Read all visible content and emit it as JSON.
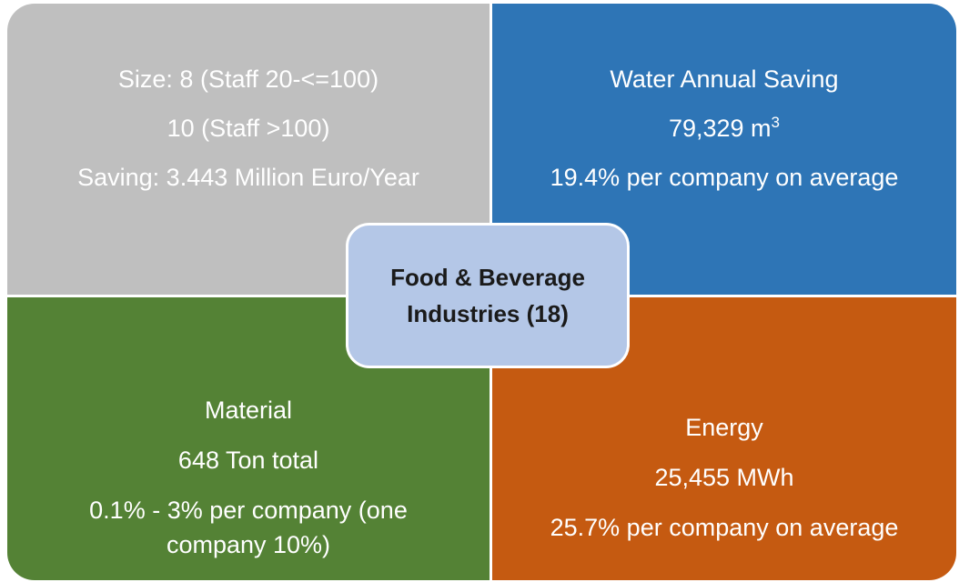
{
  "top_left": {
    "lines": [
      "Size: 8 (Staff 20-<=100)",
      "10 (Staff >100)",
      "Saving: 3.443 Million Euro/Year"
    ]
  },
  "top_right": {
    "title": "Water Annual Saving",
    "amount": "79,329 m",
    "amount_sup": "3",
    "note": "19.4% per company on average"
  },
  "bottom_left": {
    "lines": [
      "Material",
      "648 Ton total",
      "0.1% - 3% per company (one company 10%)"
    ]
  },
  "bottom_right": {
    "lines": [
      "Energy",
      "25,455 MWh",
      "25.7% per company on average"
    ]
  },
  "center": {
    "lines": [
      "Food & Beverage",
      "Industries (18)"
    ]
  }
}
